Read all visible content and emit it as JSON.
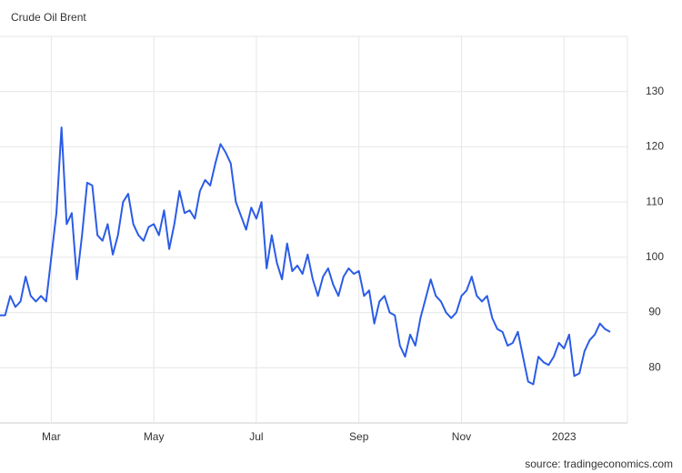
{
  "chart_data": {
    "type": "line",
    "title": "Crude Oil Brent",
    "source": "source: tradingeconomics.com",
    "categories": [
      null,
      null,
      null,
      null,
      null,
      null,
      null,
      null,
      null,
      null,
      "Mar",
      null,
      null,
      null,
      null,
      null,
      null,
      null,
      null,
      null,
      null,
      null,
      null,
      null,
      null,
      null,
      null,
      null,
      null,
      null,
      "May",
      null,
      null,
      null,
      null,
      null,
      null,
      null,
      null,
      null,
      null,
      null,
      null,
      null,
      null,
      null,
      null,
      null,
      null,
      null,
      "Jul",
      null,
      null,
      null,
      null,
      null,
      null,
      null,
      null,
      null,
      null,
      null,
      null,
      null,
      null,
      null,
      null,
      null,
      null,
      null,
      "Sep",
      null,
      null,
      null,
      null,
      null,
      null,
      null,
      null,
      null,
      null,
      null,
      null,
      null,
      null,
      null,
      null,
      null,
      null,
      null,
      "Nov",
      null,
      null,
      null,
      null,
      null,
      null,
      null,
      null,
      null,
      null,
      null,
      null,
      null,
      null,
      null,
      null,
      null,
      null,
      null,
      "2023",
      null,
      null,
      null,
      null,
      null,
      null,
      null,
      null,
      null
    ],
    "series": [
      {
        "name": "Crude Oil Brent",
        "color": "#2b5ce6",
        "values": [
          89.5,
          89.5,
          93,
          91,
          92,
          96.5,
          93,
          92,
          93,
          92,
          100,
          108,
          123.5,
          106,
          108,
          96,
          104,
          113.5,
          113,
          104,
          103,
          106,
          100.5,
          104,
          110,
          111.5,
          106,
          104,
          103,
          105.5,
          106,
          104,
          108.5,
          101.5,
          106,
          112,
          108,
          108.5,
          107,
          112,
          114,
          113,
          117,
          120.5,
          119,
          117,
          110,
          107.5,
          105,
          109,
          107,
          110,
          98,
          104,
          99,
          96,
          102.5,
          97.5,
          98.5,
          97,
          100.5,
          96,
          93,
          96.5,
          98,
          95,
          93,
          96.5,
          98,
          97,
          97.5,
          93,
          94,
          88,
          92,
          93,
          90,
          89.5,
          84,
          82,
          86,
          84,
          89,
          92.5,
          96,
          93,
          92,
          90,
          89,
          90,
          93,
          94,
          96.5,
          93,
          92,
          93,
          89,
          87,
          86.5,
          84,
          84.5,
          86.5,
          82,
          77.5,
          77,
          82,
          81,
          80.5,
          82,
          84.5,
          83.5,
          86,
          78.5,
          79,
          83,
          85,
          86,
          88,
          87,
          86.5
        ]
      }
    ],
    "ylim": [
      70,
      140
    ],
    "yticks": [
      80,
      90,
      100,
      110,
      120,
      130
    ],
    "grid": true
  }
}
